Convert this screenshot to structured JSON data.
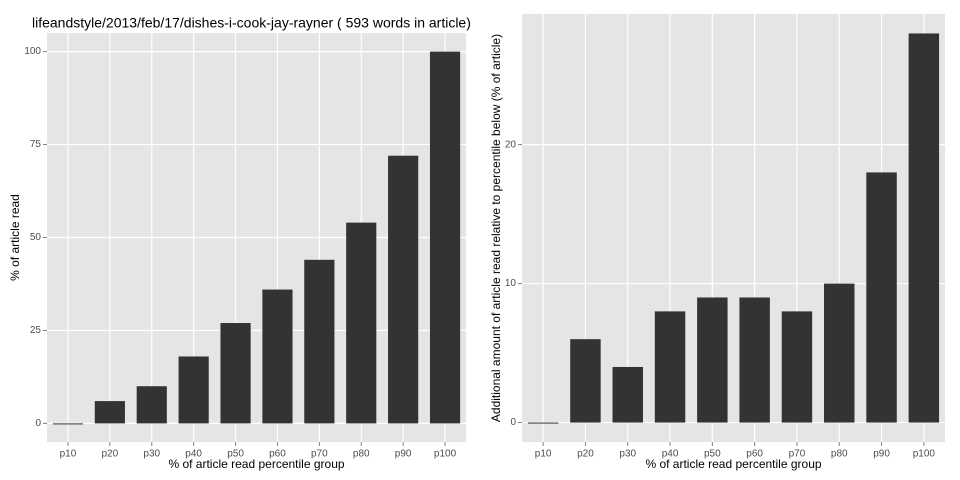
{
  "chart_data": [
    {
      "type": "bar",
      "title": "lifeandstyle/2013/feb/17/dishes-i-cook-jay-rayner ( 593 words in article)",
      "x_label": "% of article read percentile group",
      "y_label": "% of article read",
      "categories": [
        "p10",
        "p20",
        "p30",
        "p40",
        "p50",
        "p60",
        "p70",
        "p80",
        "p90",
        "p100"
      ],
      "values": [
        0,
        6,
        10,
        18,
        27,
        36,
        44,
        54,
        72,
        100
      ],
      "color": "#333333",
      "ylim": [
        -5,
        105
      ],
      "yticks": [
        0,
        25,
        50,
        75,
        100
      ],
      "grid": true
    },
    {
      "type": "bar",
      "x_label": "% of article read percentile group",
      "y_label": "Additional amount of article read relative to percentile below (% of article)",
      "categories": [
        "p10",
        "p20",
        "p30",
        "p40",
        "p50",
        "p60",
        "p70",
        "p80",
        "p90",
        "p100"
      ],
      "values": [
        0,
        6,
        4,
        8,
        9,
        9,
        8,
        10,
        18,
        28
      ],
      "color": "#333333",
      "ylim": [
        -1.4,
        29.4
      ],
      "yticks": [
        0,
        10,
        20
      ],
      "grid": true
    }
  ]
}
